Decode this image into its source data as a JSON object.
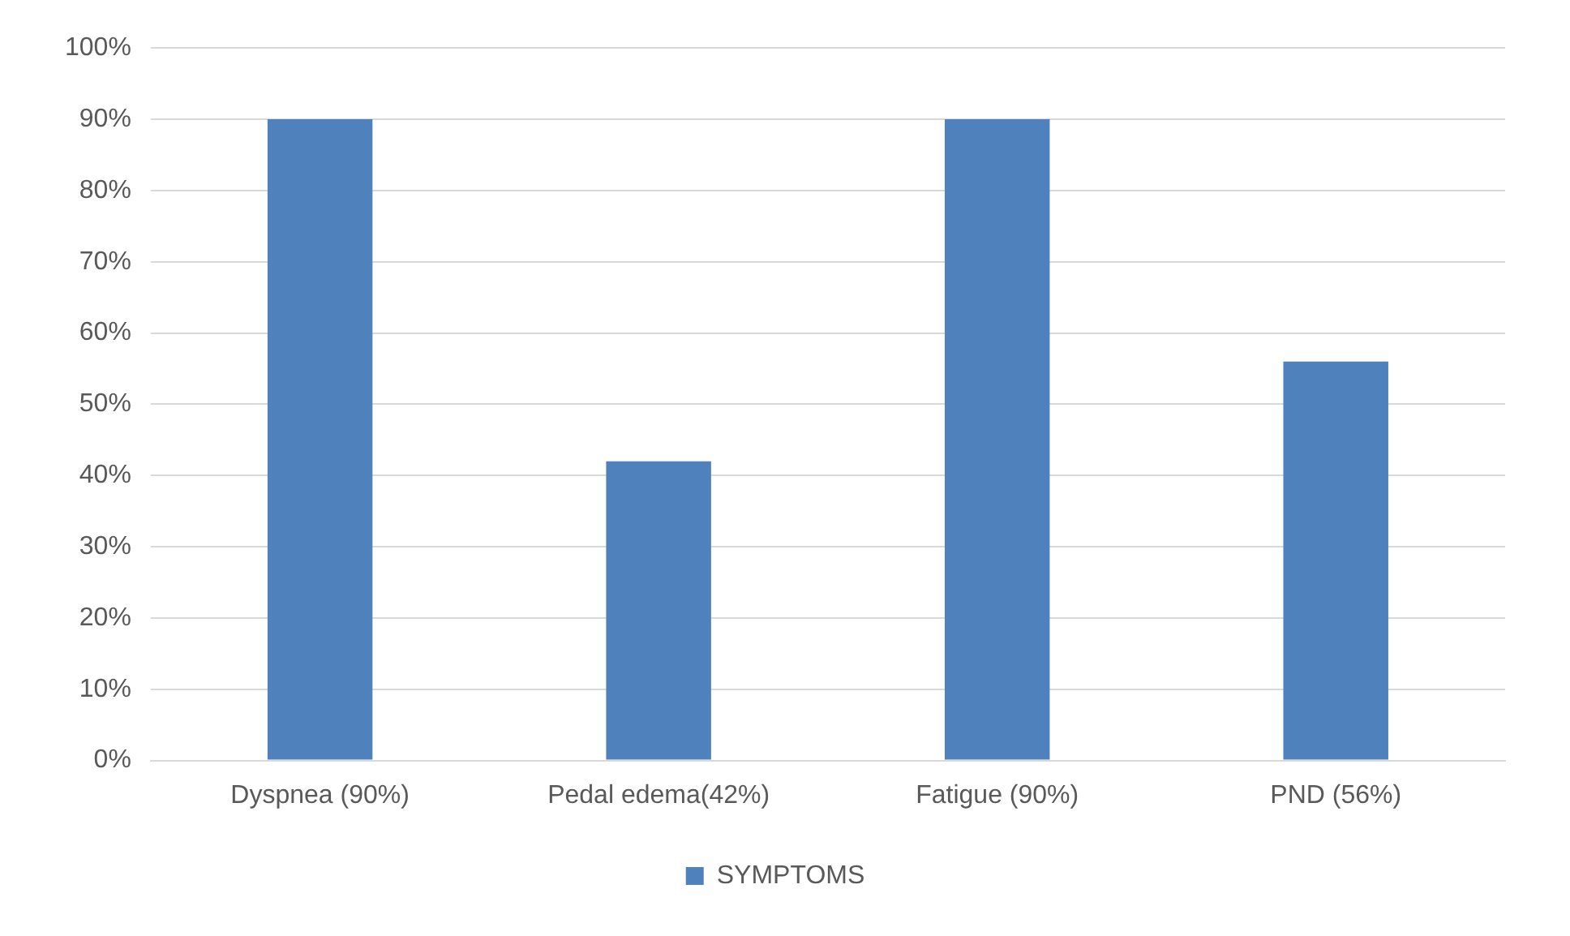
{
  "chart_data": {
    "type": "bar",
    "categories": [
      "Dyspnea (90%)",
      "Pedal edema(42%)",
      "Fatigue (90%)",
      "PND (56%)"
    ],
    "series": [
      {
        "name": "SYMPTOMS",
        "color": "#4f81bd",
        "values": [
          90,
          42,
          90,
          56
        ]
      }
    ],
    "ylim": [
      0,
      100
    ],
    "yticks": [
      {
        "value": 0,
        "label": "0%"
      },
      {
        "value": 10,
        "label": "10%"
      },
      {
        "value": 20,
        "label": "20%"
      },
      {
        "value": 30,
        "label": "30%"
      },
      {
        "value": 40,
        "label": "40%"
      },
      {
        "value": 50,
        "label": "50%"
      },
      {
        "value": 60,
        "label": "60%"
      },
      {
        "value": 70,
        "label": "70%"
      },
      {
        "value": 80,
        "label": "80%"
      },
      {
        "value": 90,
        "label": "90%"
      },
      {
        "value": 100,
        "label": "100%"
      }
    ],
    "grid": "y",
    "legend": "bottom"
  }
}
